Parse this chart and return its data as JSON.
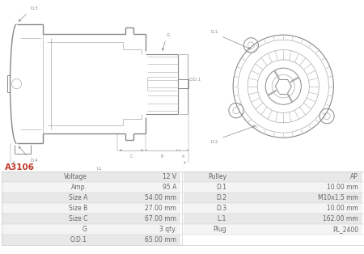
{
  "title": "A3106",
  "title_color": "#c0392b",
  "bg_color": "#ffffff",
  "table_rows": [
    {
      "left_label": "Voltage",
      "left_val": "12 V",
      "right_label": "Pulley",
      "right_val": "AP"
    },
    {
      "left_label": "Amp.",
      "left_val": "95 A",
      "right_label": "D.1",
      "right_val": "10.00 mm"
    },
    {
      "left_label": "Size A",
      "left_val": "54.00 mm",
      "right_label": "D.2",
      "right_val": "M10x1.5 mm"
    },
    {
      "left_label": "Size B",
      "left_val": "27.00 mm",
      "right_label": "D.3",
      "right_val": "10.00 mm"
    },
    {
      "left_label": "Size C",
      "left_val": "67.00 mm",
      "right_label": "L.1",
      "right_val": "162.00 mm"
    },
    {
      "left_label": "G",
      "left_val": "3 qty.",
      "right_label": "Plug",
      "right_val": "PL_2400"
    },
    {
      "left_label": "O.D.1",
      "left_val": "65.00 mm",
      "right_label": "",
      "right_val": ""
    }
  ],
  "row_colors": [
    "#e8e8e8",
    "#f4f4f4"
  ],
  "border_color": "#cccccc",
  "text_color": "#666666",
  "lc": "#aaaaaa",
  "lc_dark": "#888888",
  "dim_color": "#888888"
}
